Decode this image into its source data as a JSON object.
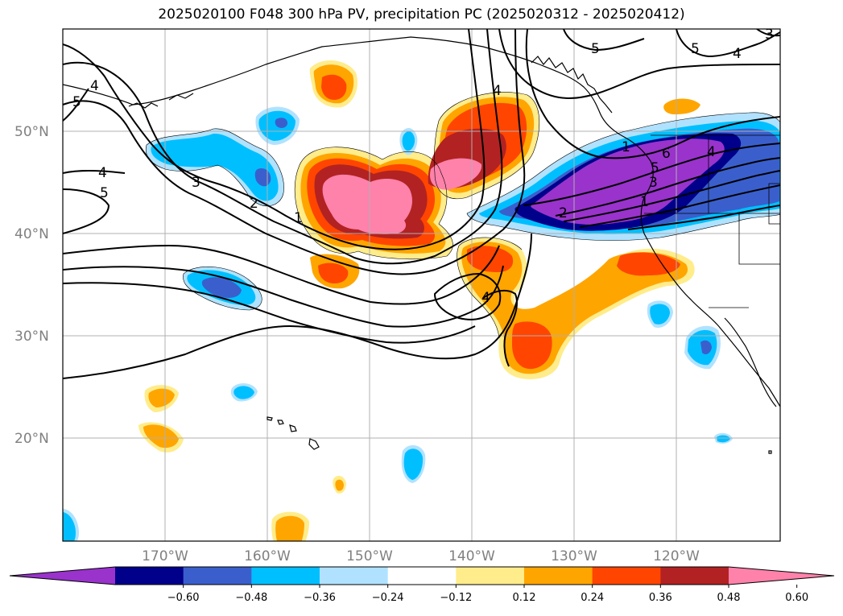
{
  "title": "2025020100 F048 300 hPa PV, precipitation PC (2025020312 - 2025020412)",
  "map": {
    "lat_labels": [
      "50°N",
      "40°N",
      "30°N",
      "20°N"
    ],
    "lon_labels": [
      "170°W",
      "160°W",
      "150°W",
      "140°W",
      "130°W",
      "120°W"
    ],
    "pv_contour_labels": [
      "5",
      "4",
      "4",
      "5",
      "3",
      "2",
      "1",
      "4",
      "4",
      "5",
      "5",
      "4",
      "3",
      "6",
      "5",
      "3",
      "1",
      "2",
      "1",
      "4"
    ]
  },
  "colorbar": {
    "ticks": [
      "−0.60",
      "−0.48",
      "−0.36",
      "−0.24",
      "−0.12",
      "0.12",
      "0.24",
      "0.36",
      "0.48",
      "0.60"
    ],
    "colors": [
      "#9933cc",
      "#00008b",
      "#3a5fcd",
      "#00bfff",
      "#b0e2ff",
      "#ffffff",
      "#ffec8b",
      "#ffa500",
      "#ff4500",
      "#b22222",
      "#ff82ab"
    ],
    "extend": "both"
  }
}
